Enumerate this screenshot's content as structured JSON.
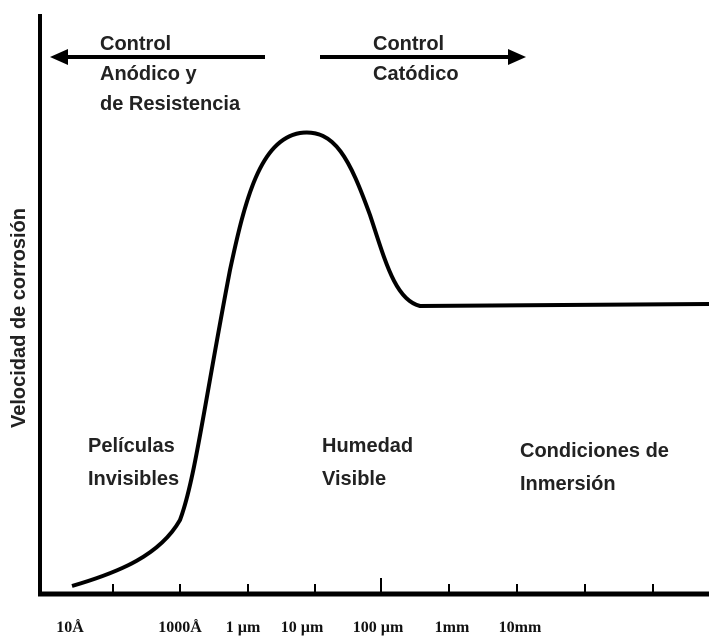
{
  "y_axis_label": "Velocidad de corrosión",
  "x_tick_labels": [
    "10Å",
    "1000Å",
    "1 µm",
    "10 µm",
    "100 µm",
    "1mm",
    "10mm"
  ],
  "control_left": [
    "Control",
    "Anódico y",
    "de Resistencia"
  ],
  "control_right": [
    "Control",
    "Catódico"
  ],
  "regions": [
    [
      "Películas",
      "Invisibles"
    ],
    [
      "Humedad",
      "Visible"
    ],
    [
      "Condiciones de",
      "Inmersión"
    ]
  ]
}
